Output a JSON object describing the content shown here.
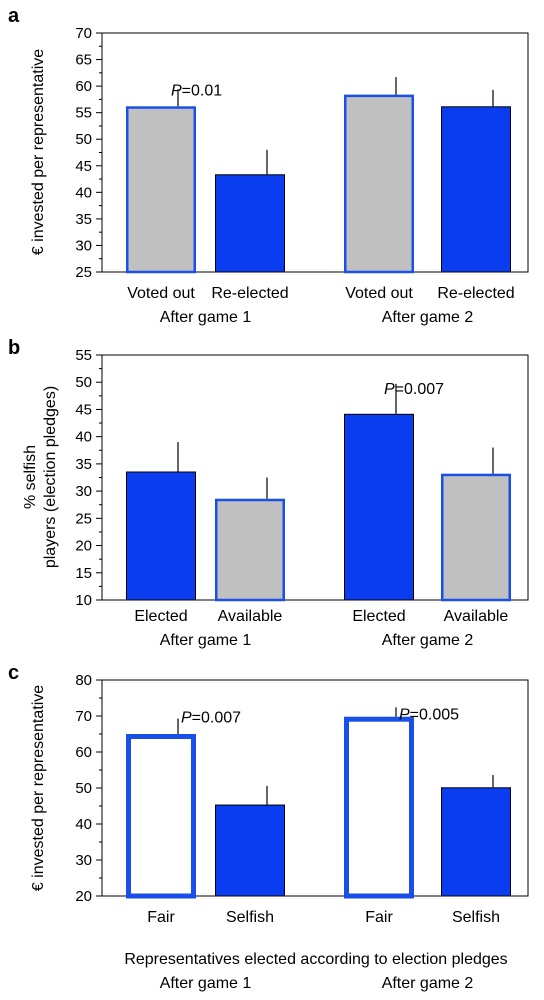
{
  "panels": [
    {
      "letter": "a",
      "chart_data": {
        "type": "bar",
        "ylabel": "€ invested per representative",
        "ylim": [
          25,
          70
        ],
        "yticks": [
          25,
          30,
          35,
          40,
          45,
          50,
          55,
          60,
          65,
          70
        ],
        "grid": false,
        "categories": [
          "Voted out",
          "Re-elected",
          "Voted out",
          "Re-elected"
        ],
        "groups": [
          "After game 1",
          "After game 2"
        ],
        "values": [
          56.2,
          43.4,
          58.4,
          56.2
        ],
        "errors": [
          3.2,
          4.6,
          3.3,
          3.1
        ],
        "styles": [
          "grey",
          "blue",
          "grey",
          "blue"
        ],
        "annotations": [
          {
            "bar": 0,
            "p_label": "P",
            "p_value": "=0.01"
          }
        ]
      }
    },
    {
      "letter": "b",
      "chart_data": {
        "type": "bar",
        "ylabel_lines": [
          "% selfish",
          "players (election pledges)"
        ],
        "ylim": [
          10,
          55
        ],
        "yticks": [
          10,
          15,
          20,
          25,
          30,
          35,
          40,
          45,
          50,
          55
        ],
        "grid": false,
        "categories": [
          "Elected",
          "Available",
          "Elected",
          "Available"
        ],
        "groups": [
          "After game 1",
          "After game 2"
        ],
        "values": [
          33.6,
          28.6,
          44.2,
          33.2
        ],
        "errors": [
          5.4,
          3.9,
          5.5,
          4.8
        ],
        "styles": [
          "blue",
          "grey",
          "blue",
          "grey"
        ],
        "annotations": [
          {
            "bar": 2,
            "p_label": "P",
            "p_value": "=0.007"
          }
        ]
      }
    },
    {
      "letter": "c",
      "chart_data": {
        "type": "bar",
        "ylabel": "€ invested per representative",
        "ylim": [
          20,
          80
        ],
        "yticks": [
          20,
          30,
          40,
          50,
          60,
          70,
          80
        ],
        "grid": false,
        "categories": [
          "Fair",
          "Selfish",
          "Fair",
          "Selfish"
        ],
        "groups": [
          "After game 1",
          "After game 2"
        ],
        "xlabel": "Representatives elected according to election pledges",
        "values": [
          65.0,
          45.4,
          69.8,
          50.2
        ],
        "errors": [
          4.3,
          5.2,
          2.6,
          3.4
        ],
        "styles": [
          "white",
          "blue",
          "white",
          "blue"
        ],
        "annotations": [
          {
            "bar": 0,
            "p_label": "P",
            "p_value": "=0.007"
          },
          {
            "bar": 2,
            "p_label": "P",
            "p_value": "=0.005"
          }
        ]
      }
    }
  ],
  "colors": {
    "blue": "#0a3cf0",
    "grey": "#c0c0c0",
    "white": "#ffffff",
    "edge_blue": "#1a50e8",
    "axis": "#000000"
  }
}
